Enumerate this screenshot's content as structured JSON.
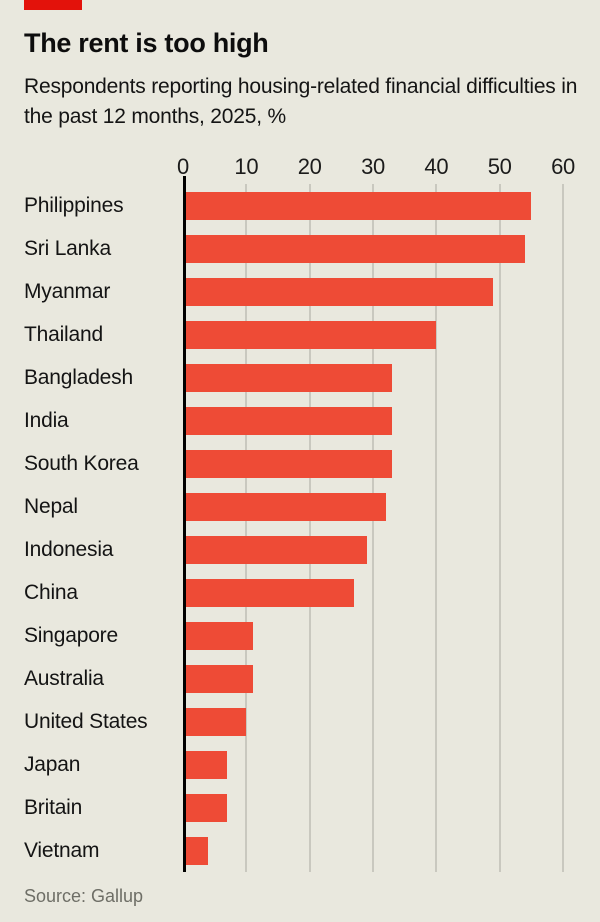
{
  "header": {
    "title": "The rent is too high",
    "subtitle": "Respondents reporting housing-related financial difficulties in the past 12 months, 2025, %"
  },
  "chart_data": {
    "type": "bar",
    "orientation": "horizontal",
    "title": "The rent is too high",
    "subtitle": "Respondents reporting housing-related financial difficulties in the past 12 months, 2025, %",
    "categories": [
      "Philippines",
      "Sri Lanka",
      "Myanmar",
      "Thailand",
      "Bangladesh",
      "India",
      "South Korea",
      "Nepal",
      "Indonesia",
      "China",
      "Singapore",
      "Australia",
      "United States",
      "Japan",
      "Britain",
      "Vietnam"
    ],
    "values": [
      55,
      54,
      49,
      40,
      33,
      33,
      33,
      32,
      29,
      27,
      11,
      11,
      10,
      7,
      7,
      4
    ],
    "xlabel": "",
    "ylabel": "",
    "xlim": [
      0,
      60
    ],
    "xticks": [
      0,
      10,
      20,
      30,
      40,
      50,
      60
    ],
    "grid": true,
    "legend": false,
    "bar_color": "#EE4B36",
    "gridline_color": "#C9C8BF",
    "zero_axis_color": "#000000"
  },
  "footer": {
    "source": "Source: Gallup"
  },
  "colors": {
    "background": "#E9E8DE",
    "brand_tag_red": "#E3120B",
    "text": "#141414",
    "muted_text": "#6E6E66"
  }
}
